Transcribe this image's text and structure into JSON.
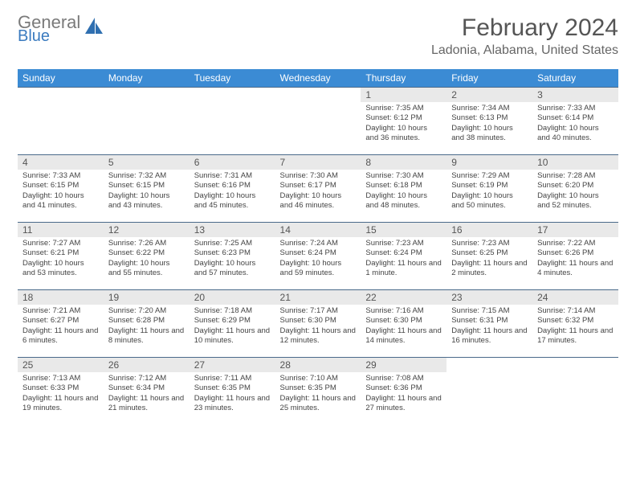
{
  "brand": {
    "word1": "General",
    "word2": "Blue"
  },
  "title": "February 2024",
  "location": "Ladonia, Alabama, United States",
  "colors": {
    "header_bg": "#3b8bd4",
    "header_text": "#ffffff",
    "daynum_bg": "#e9e9e9",
    "cell_border": "#4a6a8a",
    "logo_gray": "#7a7a7a",
    "logo_blue": "#3b7bbf"
  },
  "dayHeaders": [
    "Sunday",
    "Monday",
    "Tuesday",
    "Wednesday",
    "Thursday",
    "Friday",
    "Saturday"
  ],
  "weeks": [
    [
      {
        "empty": true
      },
      {
        "empty": true
      },
      {
        "empty": true
      },
      {
        "empty": true
      },
      {
        "n": "1",
        "sr": "7:35 AM",
        "ss": "6:12 PM",
        "dl": "10 hours and 36 minutes."
      },
      {
        "n": "2",
        "sr": "7:34 AM",
        "ss": "6:13 PM",
        "dl": "10 hours and 38 minutes."
      },
      {
        "n": "3",
        "sr": "7:33 AM",
        "ss": "6:14 PM",
        "dl": "10 hours and 40 minutes."
      }
    ],
    [
      {
        "n": "4",
        "sr": "7:33 AM",
        "ss": "6:15 PM",
        "dl": "10 hours and 41 minutes."
      },
      {
        "n": "5",
        "sr": "7:32 AM",
        "ss": "6:15 PM",
        "dl": "10 hours and 43 minutes."
      },
      {
        "n": "6",
        "sr": "7:31 AM",
        "ss": "6:16 PM",
        "dl": "10 hours and 45 minutes."
      },
      {
        "n": "7",
        "sr": "7:30 AM",
        "ss": "6:17 PM",
        "dl": "10 hours and 46 minutes."
      },
      {
        "n": "8",
        "sr": "7:30 AM",
        "ss": "6:18 PM",
        "dl": "10 hours and 48 minutes."
      },
      {
        "n": "9",
        "sr": "7:29 AM",
        "ss": "6:19 PM",
        "dl": "10 hours and 50 minutes."
      },
      {
        "n": "10",
        "sr": "7:28 AM",
        "ss": "6:20 PM",
        "dl": "10 hours and 52 minutes."
      }
    ],
    [
      {
        "n": "11",
        "sr": "7:27 AM",
        "ss": "6:21 PM",
        "dl": "10 hours and 53 minutes."
      },
      {
        "n": "12",
        "sr": "7:26 AM",
        "ss": "6:22 PM",
        "dl": "10 hours and 55 minutes."
      },
      {
        "n": "13",
        "sr": "7:25 AM",
        "ss": "6:23 PM",
        "dl": "10 hours and 57 minutes."
      },
      {
        "n": "14",
        "sr": "7:24 AM",
        "ss": "6:24 PM",
        "dl": "10 hours and 59 minutes."
      },
      {
        "n": "15",
        "sr": "7:23 AM",
        "ss": "6:24 PM",
        "dl": "11 hours and 1 minute."
      },
      {
        "n": "16",
        "sr": "7:23 AM",
        "ss": "6:25 PM",
        "dl": "11 hours and 2 minutes."
      },
      {
        "n": "17",
        "sr": "7:22 AM",
        "ss": "6:26 PM",
        "dl": "11 hours and 4 minutes."
      }
    ],
    [
      {
        "n": "18",
        "sr": "7:21 AM",
        "ss": "6:27 PM",
        "dl": "11 hours and 6 minutes."
      },
      {
        "n": "19",
        "sr": "7:20 AM",
        "ss": "6:28 PM",
        "dl": "11 hours and 8 minutes."
      },
      {
        "n": "20",
        "sr": "7:18 AM",
        "ss": "6:29 PM",
        "dl": "11 hours and 10 minutes."
      },
      {
        "n": "21",
        "sr": "7:17 AM",
        "ss": "6:30 PM",
        "dl": "11 hours and 12 minutes."
      },
      {
        "n": "22",
        "sr": "7:16 AM",
        "ss": "6:30 PM",
        "dl": "11 hours and 14 minutes."
      },
      {
        "n": "23",
        "sr": "7:15 AM",
        "ss": "6:31 PM",
        "dl": "11 hours and 16 minutes."
      },
      {
        "n": "24",
        "sr": "7:14 AM",
        "ss": "6:32 PM",
        "dl": "11 hours and 17 minutes."
      }
    ],
    [
      {
        "n": "25",
        "sr": "7:13 AM",
        "ss": "6:33 PM",
        "dl": "11 hours and 19 minutes."
      },
      {
        "n": "26",
        "sr": "7:12 AM",
        "ss": "6:34 PM",
        "dl": "11 hours and 21 minutes."
      },
      {
        "n": "27",
        "sr": "7:11 AM",
        "ss": "6:35 PM",
        "dl": "11 hours and 23 minutes."
      },
      {
        "n": "28",
        "sr": "7:10 AM",
        "ss": "6:35 PM",
        "dl": "11 hours and 25 minutes."
      },
      {
        "n": "29",
        "sr": "7:08 AM",
        "ss": "6:36 PM",
        "dl": "11 hours and 27 minutes."
      },
      {
        "empty": true
      },
      {
        "empty": true
      }
    ]
  ]
}
